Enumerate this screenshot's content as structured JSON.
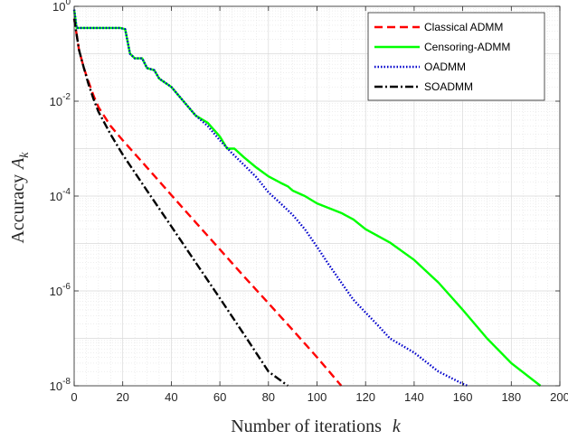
{
  "chart_data": {
    "type": "line",
    "xlabel": "Number of iterations",
    "xlabel_var": "k",
    "ylabel": "Accuracy",
    "ylabel_var": "A",
    "ylabel_sub": "k",
    "xlim": [
      0,
      200
    ],
    "ylim": [
      1e-08,
      1
    ],
    "yscale": "log",
    "grid": true,
    "minor_grid": true,
    "legend_position": "top-right",
    "x_ticks": [
      {
        "value": 0,
        "label": "0"
      },
      {
        "value": 20,
        "label": "20"
      },
      {
        "value": 40,
        "label": "40"
      },
      {
        "value": 60,
        "label": "60"
      },
      {
        "value": 80,
        "label": "80"
      },
      {
        "value": 100,
        "label": "100"
      },
      {
        "value": 120,
        "label": "120"
      },
      {
        "value": 140,
        "label": "140"
      },
      {
        "value": 160,
        "label": "160"
      },
      {
        "value": 180,
        "label": "180"
      },
      {
        "value": 200,
        "label": "200"
      }
    ],
    "y_ticks": [
      {
        "value": 1,
        "base": "10",
        "exp": "0"
      },
      {
        "value": 0.01,
        "base": "10",
        "exp": "-2"
      },
      {
        "value": 0.0001,
        "base": "10",
        "exp": "-4"
      },
      {
        "value": 1e-06,
        "base": "10",
        "exp": "-6"
      },
      {
        "value": 1e-08,
        "base": "10",
        "exp": "-8"
      }
    ],
    "series": [
      {
        "name": "Classical ADMM",
        "color": "#ff0000",
        "dash": "dashed",
        "points": [
          [
            0,
            0.55
          ],
          [
            2,
            0.12
          ],
          [
            4,
            0.05
          ],
          [
            6,
            0.025
          ],
          [
            8,
            0.013
          ],
          [
            10,
            0.0075
          ],
          [
            15,
            0.003
          ],
          [
            20,
            0.0015
          ],
          [
            30,
            0.0004
          ],
          [
            40,
            0.000105
          ],
          [
            50,
            2.8e-05
          ],
          [
            60,
            7.5e-06
          ],
          [
            70,
            2e-06
          ],
          [
            80,
            5.5e-07
          ],
          [
            90,
            1.5e-07
          ],
          [
            100,
            4e-08
          ],
          [
            110,
            1e-08
          ]
        ]
      },
      {
        "name": "Censoring-ADMM",
        "color": "#00ff00",
        "dash": "solid",
        "points": [
          [
            0,
            0.85
          ],
          [
            1,
            0.35
          ],
          [
            5,
            0.35
          ],
          [
            19,
            0.35
          ],
          [
            21,
            0.33
          ],
          [
            23,
            0.1
          ],
          [
            25,
            0.08
          ],
          [
            28,
            0.08
          ],
          [
            30,
            0.05
          ],
          [
            33,
            0.045
          ],
          [
            35,
            0.03
          ],
          [
            40,
            0.02
          ],
          [
            45,
            0.01
          ],
          [
            50,
            0.005
          ],
          [
            55,
            0.0035
          ],
          [
            60,
            0.0018
          ],
          [
            63,
            0.001
          ],
          [
            66,
            0.001
          ],
          [
            70,
            0.00065
          ],
          [
            75,
            0.0004
          ],
          [
            80,
            0.00026
          ],
          [
            85,
            0.00019
          ],
          [
            88,
            0.00016
          ],
          [
            90,
            0.00013
          ],
          [
            95,
            0.0001
          ],
          [
            100,
            7e-05
          ],
          [
            110,
            4.4e-05
          ],
          [
            115,
            3.2e-05
          ],
          [
            120,
            2e-05
          ],
          [
            130,
            1.05e-05
          ],
          [
            140,
            4.5e-06
          ],
          [
            150,
            1.5e-06
          ],
          [
            160,
            4e-07
          ],
          [
            170,
            1e-07
          ],
          [
            180,
            3e-08
          ],
          [
            192,
            1e-08
          ]
        ]
      },
      {
        "name": "OADMM",
        "color": "#0000cc",
        "dash": "dotted",
        "points": [
          [
            0,
            0.85
          ],
          [
            1,
            0.35
          ],
          [
            5,
            0.35
          ],
          [
            19,
            0.35
          ],
          [
            21,
            0.33
          ],
          [
            23,
            0.1
          ],
          [
            25,
            0.08
          ],
          [
            28,
            0.08
          ],
          [
            30,
            0.05
          ],
          [
            33,
            0.045
          ],
          [
            35,
            0.03
          ],
          [
            40,
            0.02
          ],
          [
            45,
            0.01
          ],
          [
            50,
            0.005
          ],
          [
            55,
            0.003
          ],
          [
            60,
            0.0015
          ],
          [
            65,
            0.0008
          ],
          [
            70,
            0.00045
          ],
          [
            75,
            0.00025
          ],
          [
            80,
            0.00012
          ],
          [
            85,
            7e-05
          ],
          [
            90,
            4e-05
          ],
          [
            95,
            2e-05
          ],
          [
            100,
            8.5e-06
          ],
          [
            105,
            3.5e-06
          ],
          [
            110,
            1.5e-06
          ],
          [
            115,
            6.5e-07
          ],
          [
            120,
            3.5e-07
          ],
          [
            125,
            1.9e-07
          ],
          [
            130,
            1e-07
          ],
          [
            140,
            5e-08
          ],
          [
            150,
            2e-08
          ],
          [
            160,
            1.1e-08
          ],
          [
            162,
            1e-08
          ]
        ]
      },
      {
        "name": "SOADMM",
        "color": "#000000",
        "dash": "dashdot",
        "points": [
          [
            0,
            0.55
          ],
          [
            2,
            0.12
          ],
          [
            4,
            0.05
          ],
          [
            6,
            0.022
          ],
          [
            8,
            0.011
          ],
          [
            10,
            0.006
          ],
          [
            15,
            0.002
          ],
          [
            20,
            0.00075
          ],
          [
            30,
            0.00013
          ],
          [
            40,
            2.3e-05
          ],
          [
            50,
            4e-06
          ],
          [
            60,
            7e-07
          ],
          [
            70,
            1.2e-07
          ],
          [
            80,
            2e-08
          ],
          [
            88,
            1e-08
          ]
        ]
      }
    ]
  }
}
